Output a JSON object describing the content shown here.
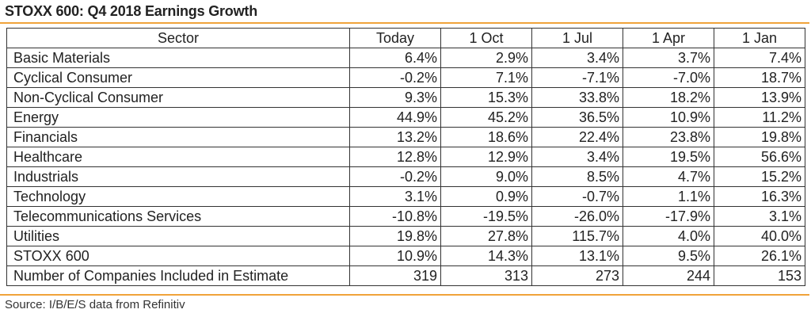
{
  "title": "STOXX 600: Q4 2018 Earnings Growth",
  "table": {
    "headers": [
      "Sector",
      "Today",
      "1 Oct",
      "1 Jul",
      "1 Apr",
      "1 Jan"
    ],
    "rows": [
      [
        "Basic Materials",
        "6.4%",
        "2.9%",
        "3.4%",
        "3.7%",
        "7.4%"
      ],
      [
        "Cyclical Consumer",
        "-0.2%",
        "7.1%",
        "-7.1%",
        "-7.0%",
        "18.7%"
      ],
      [
        "Non-Cyclical Consumer",
        "9.3%",
        "15.3%",
        "33.8%",
        "18.2%",
        "13.9%"
      ],
      [
        "Energy",
        "44.9%",
        "45.2%",
        "36.5%",
        "10.9%",
        "11.2%"
      ],
      [
        "Financials",
        "13.2%",
        "18.6%",
        "22.4%",
        "23.8%",
        "19.8%"
      ],
      [
        "Healthcare",
        "12.8%",
        "12.9%",
        "3.4%",
        "19.5%",
        "56.6%"
      ],
      [
        "Industrials",
        "-0.2%",
        "9.0%",
        "8.5%",
        "4.7%",
        "15.2%"
      ],
      [
        "Technology",
        "3.1%",
        "0.9%",
        "-0.7%",
        "1.1%",
        "16.3%"
      ],
      [
        "Telecommunications Services",
        "-10.8%",
        "-19.5%",
        "-26.0%",
        "-17.9%",
        "3.1%"
      ],
      [
        "Utilities",
        "19.8%",
        "27.8%",
        "115.7%",
        "4.0%",
        "40.0%"
      ],
      [
        "STOXX 600",
        "10.9%",
        "14.3%",
        "13.1%",
        "9.5%",
        "26.1%"
      ],
      [
        "Number of Companies Included in Estimate",
        "319",
        "313",
        "273",
        "244",
        "153"
      ]
    ]
  },
  "source": "Source: I/B/E/S data from Refinitiv",
  "colors": {
    "accent_rule": "#f0a33a",
    "text": "#222222",
    "border": "#333333"
  }
}
